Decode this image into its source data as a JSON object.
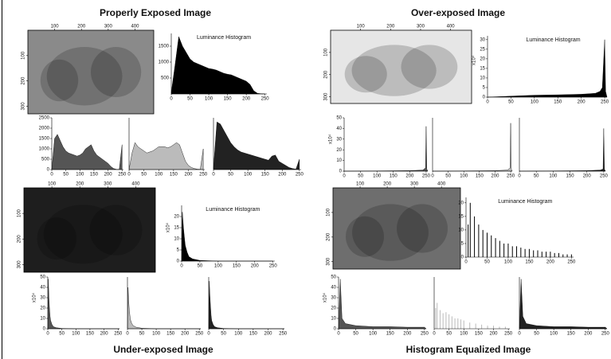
{
  "chart_data": [
    {
      "type": "image",
      "title": "Properly Exposed Image",
      "color": "#8a8a8a",
      "xlim": [
        0,
        470
      ],
      "ylim": [
        0,
        330
      ],
      "xticks": [
        100,
        200,
        300,
        400
      ],
      "yticks": [
        100,
        200,
        300
      ]
    },
    {
      "type": "area",
      "title": "Luminance Histogram",
      "color": "#000000",
      "xlim": [
        0,
        255
      ],
      "ylim": [
        0,
        1900
      ],
      "yticks": [
        500,
        1000,
        1500
      ],
      "xticks": [
        0,
        50,
        100,
        150,
        200,
        250
      ],
      "x": [
        0,
        10,
        20,
        30,
        40,
        50,
        60,
        70,
        80,
        90,
        100,
        110,
        120,
        130,
        140,
        150,
        160,
        170,
        180,
        190,
        200,
        210,
        220,
        230,
        240,
        250
      ],
      "values": [
        50,
        900,
        1800,
        1500,
        1300,
        1100,
        1000,
        950,
        900,
        850,
        800,
        780,
        750,
        700,
        650,
        620,
        600,
        550,
        500,
        450,
        400,
        300,
        100,
        20,
        5,
        0
      ]
    },
    {
      "type": "area",
      "color": "#555555",
      "xlim": [
        0,
        255
      ],
      "ylim": [
        0,
        2500
      ],
      "yticks": [
        0,
        500,
        1000,
        1500,
        2000,
        2500
      ],
      "xticks": [
        0,
        50,
        100,
        150,
        200,
        250
      ],
      "x": [
        0,
        10,
        20,
        30,
        40,
        50,
        60,
        70,
        80,
        90,
        100,
        110,
        120,
        130,
        140,
        150,
        160,
        170,
        180,
        190,
        200,
        210,
        220,
        230,
        240,
        250
      ],
      "values": [
        0,
        1500,
        1700,
        1400,
        1100,
        900,
        800,
        750,
        700,
        650,
        700,
        800,
        1000,
        1100,
        1200,
        900,
        700,
        600,
        500,
        400,
        300,
        150,
        50,
        10,
        5,
        1200
      ]
    },
    {
      "type": "area",
      "color": "#bbbbbb",
      "xlim": [
        0,
        255
      ],
      "ylim": [
        0,
        2500
      ],
      "xticks": [
        0,
        50,
        100,
        150,
        200,
        250
      ],
      "x": [
        0,
        10,
        20,
        30,
        40,
        50,
        60,
        70,
        80,
        90,
        100,
        110,
        120,
        130,
        140,
        150,
        160,
        170,
        180,
        190,
        200,
        210,
        220,
        230,
        240,
        250
      ],
      "values": [
        0,
        800,
        1300,
        1100,
        1000,
        900,
        800,
        850,
        900,
        1000,
        1100,
        1100,
        1100,
        1050,
        1100,
        1200,
        1300,
        1200,
        800,
        400,
        200,
        100,
        50,
        20,
        10,
        1000
      ]
    },
    {
      "type": "area",
      "color": "#222222",
      "xlim": [
        0,
        255
      ],
      "ylim": [
        0,
        2500
      ],
      "xticks": [
        0,
        50,
        100,
        150,
        200,
        250
      ],
      "x": [
        0,
        10,
        20,
        30,
        40,
        50,
        60,
        70,
        80,
        90,
        100,
        110,
        120,
        130,
        140,
        150,
        160,
        170,
        180,
        190,
        200,
        210,
        220,
        230,
        240,
        250
      ],
      "values": [
        100,
        2300,
        2200,
        1900,
        1600,
        1300,
        1100,
        950,
        850,
        800,
        750,
        700,
        650,
        600,
        550,
        500,
        450,
        650,
        700,
        400,
        300,
        200,
        100,
        50,
        20,
        500
      ]
    },
    {
      "type": "image",
      "title": "Over-exposed Image",
      "color": "#e6e6e6",
      "xlim": [
        0,
        470
      ],
      "ylim": [
        0,
        330
      ],
      "xticks": [
        100,
        200,
        300,
        400
      ],
      "yticks": [
        100,
        200,
        300
      ]
    },
    {
      "type": "area",
      "title": "Luminance Histogram",
      "ylabel": "x10⁴",
      "color": "#000000",
      "xlim": [
        0,
        255
      ],
      "ylim": [
        0,
        32
      ],
      "yticks": [
        0,
        5,
        10,
        15,
        20,
        25,
        30
      ],
      "xticks": [
        0,
        50,
        100,
        150,
        200,
        250
      ],
      "x": [
        0,
        50,
        100,
        150,
        200,
        230,
        240,
        245,
        250,
        252,
        255
      ],
      "values": [
        0,
        0.5,
        1,
        1.2,
        1.5,
        2,
        3,
        5,
        30,
        3,
        0
      ]
    },
    {
      "type": "area",
      "ylabel": "x10⁴",
      "color": "#555555",
      "xlim": [
        0,
        255
      ],
      "ylim": [
        0,
        50
      ],
      "yticks": [
        0,
        10,
        20,
        30,
        40,
        50
      ],
      "xticks": [
        0,
        50,
        100,
        150,
        200,
        250
      ],
      "x": [
        0,
        100,
        200,
        240,
        248,
        250,
        252,
        255
      ],
      "values": [
        0,
        0.2,
        0.5,
        1,
        3,
        42,
        2,
        0
      ]
    },
    {
      "type": "area",
      "color": "#bbbbbb",
      "xlim": [
        0,
        255
      ],
      "ylim": [
        0,
        50
      ],
      "xticks": [
        0,
        50,
        100,
        150,
        200,
        250
      ],
      "x": [
        0,
        100,
        200,
        240,
        248,
        250,
        252,
        255
      ],
      "values": [
        0,
        0.2,
        0.5,
        1,
        3,
        45,
        2,
        0
      ]
    },
    {
      "type": "area",
      "color": "#222222",
      "xlim": [
        0,
        255
      ],
      "ylim": [
        0,
        50
      ],
      "xticks": [
        0,
        50,
        100,
        150,
        200,
        250
      ],
      "x": [
        0,
        100,
        200,
        240,
        248,
        250,
        252,
        255
      ],
      "values": [
        0,
        0.2,
        0.5,
        1,
        2,
        40,
        2,
        0
      ]
    },
    {
      "type": "image",
      "title": "Under-exposed Image",
      "color": "#1e1e1e",
      "xlim": [
        0,
        470
      ],
      "ylim": [
        0,
        330
      ],
      "xticks": [
        100,
        200,
        300,
        400
      ],
      "yticks": [
        100,
        200,
        300
      ]
    },
    {
      "type": "area",
      "title": "Luminance Histogram",
      "ylabel": "x10⁴",
      "color": "#000000",
      "xlim": [
        0,
        255
      ],
      "ylim": [
        0,
        25
      ],
      "yticks": [
        0,
        5,
        10,
        15,
        20
      ],
      "xticks": [
        0,
        50,
        100,
        150,
        200,
        250
      ],
      "x": [
        0,
        2,
        5,
        8,
        10,
        15,
        20,
        30,
        50,
        100,
        250
      ],
      "values": [
        0,
        22,
        15,
        10,
        7,
        4,
        2,
        1,
        0.3,
        0,
        0
      ]
    },
    {
      "type": "area",
      "ylabel": "x10⁴",
      "color": "#555555",
      "xlim": [
        0,
        255
      ],
      "ylim": [
        0,
        50
      ],
      "yticks": [
        0,
        10,
        20,
        30,
        40,
        50
      ],
      "xticks": [
        0,
        50,
        100,
        150,
        200,
        250
      ],
      "x": [
        0,
        2,
        4,
        6,
        8,
        10,
        15,
        20,
        30,
        50,
        100,
        255
      ],
      "values": [
        0,
        48,
        30,
        20,
        12,
        8,
        4,
        2,
        1,
        0.3,
        0,
        0
      ]
    },
    {
      "type": "area",
      "color": "#bbbbbb",
      "xlim": [
        0,
        255
      ],
      "ylim": [
        0,
        50
      ],
      "xticks": [
        0,
        50,
        100,
        150,
        200,
        250
      ],
      "x": [
        0,
        2,
        4,
        6,
        8,
        10,
        15,
        20,
        30,
        50,
        100,
        255
      ],
      "values": [
        0,
        40,
        28,
        20,
        14,
        9,
        5,
        3,
        1.5,
        0.5,
        0,
        0
      ]
    },
    {
      "type": "area",
      "color": "#222222",
      "xlim": [
        0,
        255
      ],
      "ylim": [
        0,
        50
      ],
      "xticks": [
        0,
        50,
        100,
        150,
        200,
        250
      ],
      "x": [
        0,
        2,
        4,
        6,
        8,
        10,
        15,
        20,
        30,
        50,
        100,
        255
      ],
      "values": [
        0,
        46,
        32,
        22,
        13,
        8,
        4,
        2,
        1,
        0.3,
        0,
        0
      ]
    },
    {
      "type": "image",
      "title": "Histogram Equalized Image",
      "color": "#6e6e6e",
      "xlim": [
        0,
        470
      ],
      "ylim": [
        0,
        330
      ],
      "xticks": [
        100,
        200,
        300,
        400
      ],
      "yticks": [
        100,
        200,
        300
      ]
    },
    {
      "type": "bar",
      "title": "Luminance Histogram",
      "color": "#000000",
      "xlim": [
        0,
        255
      ],
      "ylim": [
        0,
        22
      ],
      "yticks": [
        0,
        5,
        10,
        15,
        20
      ],
      "xticks": [
        0,
        50,
        100,
        150,
        200,
        250
      ],
      "x": [
        5,
        10,
        20,
        30,
        40,
        50,
        60,
        70,
        80,
        90,
        100,
        110,
        120,
        130,
        140,
        150,
        160,
        170,
        180,
        190,
        200,
        210,
        220,
        230,
        240,
        250
      ],
      "values": [
        12,
        20,
        15,
        12,
        10,
        9,
        8,
        7,
        6,
        5,
        5,
        4,
        4,
        3.5,
        3,
        3,
        2.5,
        2.5,
        2,
        2,
        2,
        1.5,
        1.5,
        1,
        1,
        1
      ]
    },
    {
      "type": "area",
      "ylabel": "x10⁴",
      "color": "#555555",
      "xlim": [
        0,
        255
      ],
      "ylim": [
        0,
        50
      ],
      "yticks": [
        0,
        10,
        20,
        30,
        40,
        50
      ],
      "xticks": [
        0,
        50,
        100,
        150,
        200,
        250
      ],
      "x": [
        0,
        5,
        10,
        20,
        50,
        100,
        150,
        200,
        250,
        255
      ],
      "values": [
        0,
        48,
        10,
        5,
        3,
        2,
        2,
        1.5,
        1.5,
        0
      ]
    },
    {
      "type": "bar",
      "color": "#bbbbbb",
      "xlim": [
        0,
        255
      ],
      "ylim": [
        0,
        50
      ],
      "xticks": [
        0,
        50,
        100,
        150,
        200,
        250
      ],
      "x": [
        5,
        10,
        20,
        30,
        40,
        50,
        60,
        70,
        80,
        90,
        100,
        120,
        140,
        160,
        180,
        200,
        220,
        240
      ],
      "values": [
        20,
        25,
        18,
        15,
        16,
        14,
        12,
        10,
        10,
        9,
        8,
        6,
        5,
        4,
        3,
        3,
        2,
        2
      ]
    },
    {
      "type": "area",
      "color": "#222222",
      "xlim": [
        0,
        255
      ],
      "ylim": [
        0,
        50
      ],
      "xticks": [
        0,
        50,
        100,
        150,
        200,
        250
      ],
      "x": [
        0,
        5,
        10,
        20,
        50,
        100,
        150,
        200,
        250,
        255
      ],
      "values": [
        0,
        48,
        12,
        5,
        3,
        2,
        2,
        1.5,
        1.5,
        0
      ]
    }
  ]
}
